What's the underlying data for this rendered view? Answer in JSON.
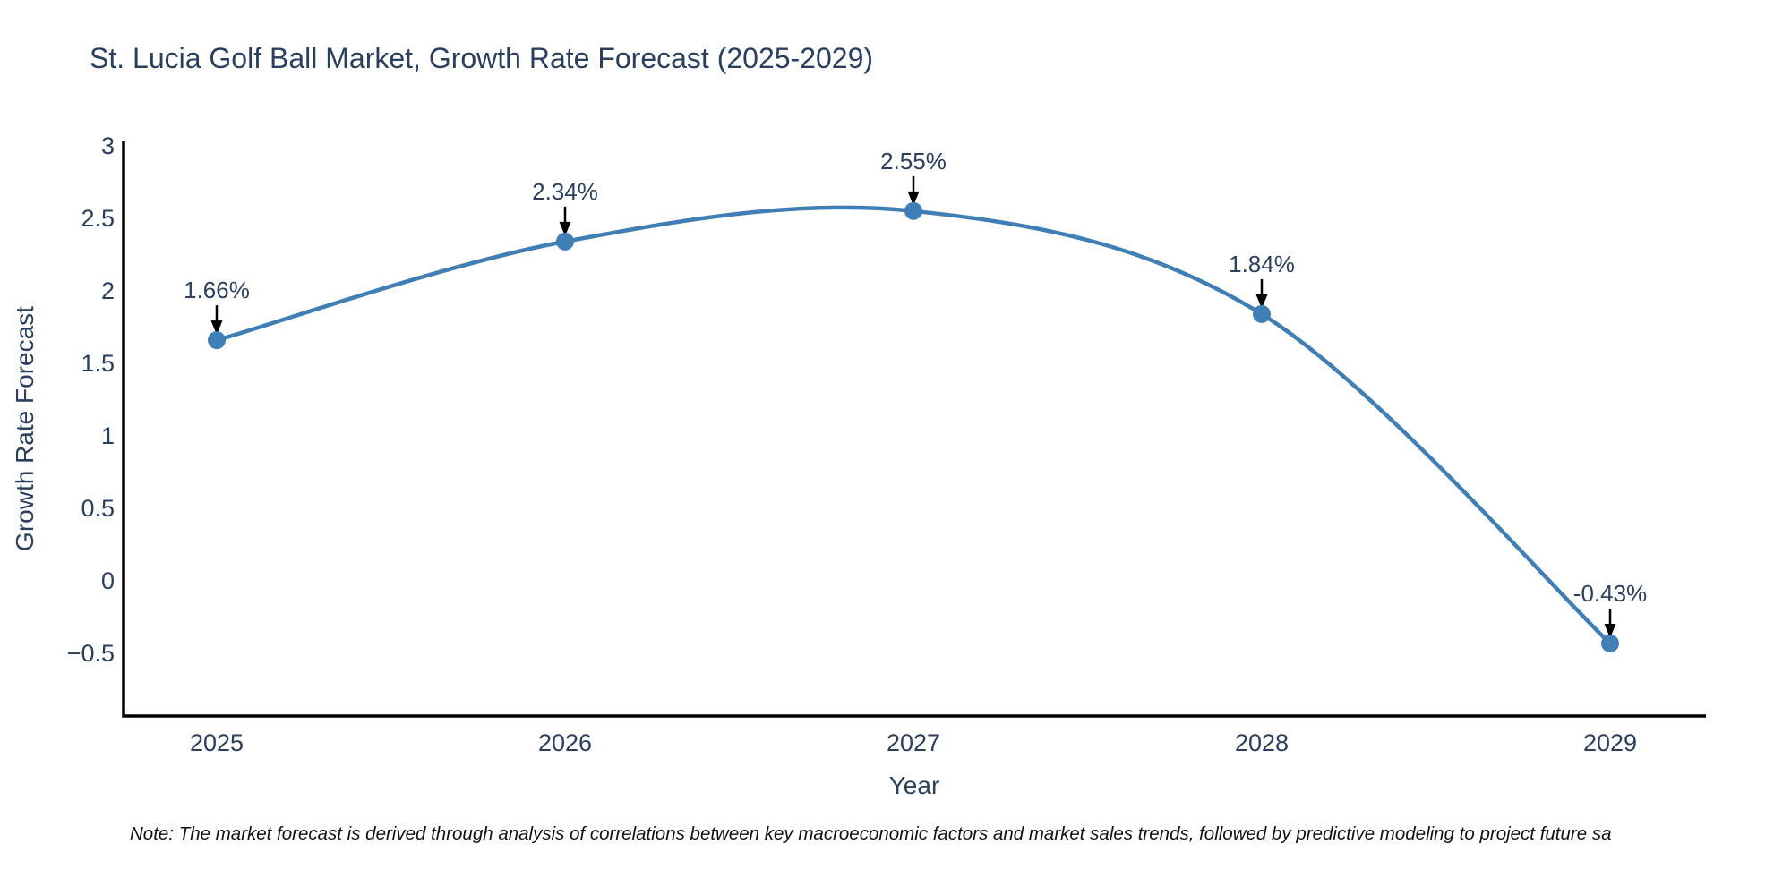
{
  "chart_data": {
    "type": "line",
    "title": "St. Lucia Golf Ball Market, Growth Rate Forecast (2025-2029)",
    "xlabel": "Year",
    "ylabel": "Growth Rate Forecast",
    "categories": [
      "2025",
      "2026",
      "2027",
      "2028",
      "2029"
    ],
    "values": [
      1.66,
      2.34,
      2.55,
      1.84,
      -0.43
    ],
    "point_labels": [
      "1.66%",
      "2.34%",
      "2.55%",
      "1.84%",
      "-0.43%"
    ],
    "yticks": {
      "labels": [
        "3",
        "2.5",
        "2",
        "1.5",
        "1",
        "0.5",
        "0",
        "−0.5"
      ],
      "values": [
        3,
        2.5,
        2,
        1.5,
        1,
        0.5,
        0,
        -0.5
      ]
    },
    "ylim": [
      -0.93,
      3.03
    ],
    "line_shape": "spline",
    "grid": false,
    "legend": "none",
    "annotation_style": "value label above point with black down arrow",
    "colors": {
      "line": "#3f7fb5",
      "marker": "#3f7fb5",
      "axis": "#000000",
      "text": "#2a3f5f",
      "arrow": "#000000"
    }
  },
  "footnote": {
    "text": "Note: The market forecast is derived through analysis of correlations between key macroeconomic factors and market sales trends, followed by predictive modeling to project future sa"
  }
}
